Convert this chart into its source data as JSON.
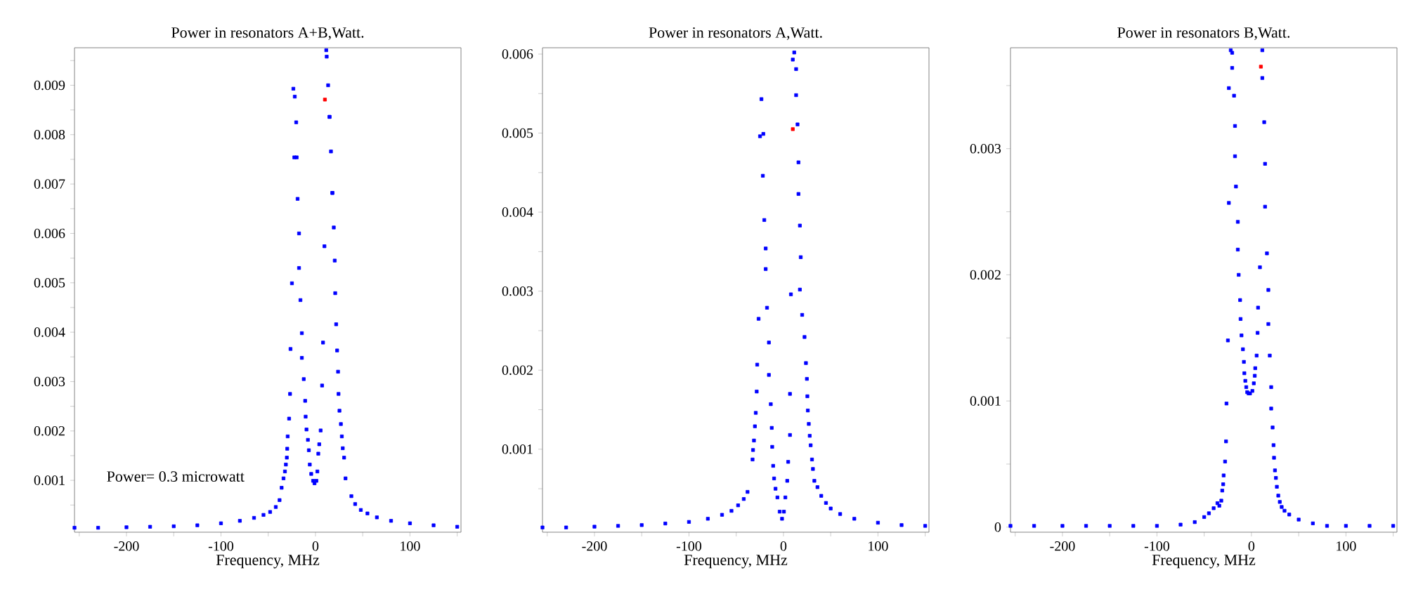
{
  "chart_data": [
    {
      "type": "scatter",
      "title": "Power in resonators A+B,Watt.",
      "xlabel": "Frequency, MHz",
      "marker": "square",
      "xlim": [
        -255,
        154
      ],
      "ylim": [
        -5e-05,
        0.00976
      ],
      "xticks": [
        {
          "value": -250,
          "label": null
        },
        -200,
        {
          "value": -150,
          "label": null
        },
        -100,
        {
          "value": -50,
          "label": null
        },
        0,
        {
          "value": 50,
          "label": null
        },
        100,
        {
          "value": 150,
          "label": null
        }
      ],
      "yticks": [
        {
          "value": 0.0005,
          "label": null
        },
        0.001,
        {
          "value": 0.0015,
          "label": null
        },
        0.002,
        {
          "value": 0.0025,
          "label": null
        },
        0.003,
        {
          "value": 0.0035,
          "label": null
        },
        0.004,
        {
          "value": 0.0045,
          "label": null
        },
        0.005,
        {
          "value": 0.0055,
          "label": null
        },
        0.006,
        {
          "value": 0.0065,
          "label": null
        },
        0.007,
        {
          "value": 0.0075,
          "label": null
        },
        0.008,
        {
          "value": 0.0085,
          "label": null
        },
        0.009,
        {
          "value": 0.0095,
          "label": null
        }
      ],
      "annotations": [
        "Power= 0.3 microwatt"
      ],
      "series": [
        {
          "color": "#0000ff",
          "x": [
            -255,
            -230,
            -200,
            -175,
            -150,
            -125,
            -100,
            -80,
            -65,
            -55,
            -48,
            -42,
            -38,
            -35.8,
            -33.8,
            -32.3,
            -31.3,
            -30.3,
            -29.9,
            -29.4,
            -27.9,
            -26.9,
            -26.4,
            -24.9,
            -23.4,
            -22.4,
            -21.9,
            -20.4,
            -19.9,
            -18.9,
            -17.4,
            -17.4,
            -15.9,
            -14.4,
            -14.4,
            -12.4,
            -10.9,
            -10.4,
            -9.5,
            -8.0,
            -7.0,
            -6.0,
            -4.5,
            -2.5,
            -1.0,
            1.0,
            2.0,
            3.0,
            4.0,
            5.5,
            7.0,
            8.0,
            9.5,
            11.4,
            11.9,
            13.4,
            14.9,
            14.9,
            16.4,
            17.9,
            17.9,
            19.4,
            20.4,
            20.9,
            21.9,
            22.9,
            23.9,
            24.4,
            25.4,
            26.9,
            27.9,
            28.9,
            30.3,
            31.8,
            38,
            42,
            48,
            55,
            65,
            80,
            100,
            125,
            150
          ],
          "values": [
            4e-05,
            4e-05,
            5e-05,
            6e-05,
            7e-05,
            9e-05,
            0.00013,
            0.00018,
            0.00024,
            0.0003,
            0.00036,
            0.00046,
            0.0006,
            0.00085,
            0.00104,
            0.00118,
            0.00132,
            0.00146,
            0.00164,
            0.00189,
            0.00225,
            0.00275,
            0.00366,
            0.00499,
            0.00893,
            0.00754,
            0.00877,
            0.00825,
            0.00754,
            0.0067,
            0.006,
            0.0053,
            0.00465,
            0.00398,
            0.00348,
            0.00305,
            0.00261,
            0.00229,
            0.00203,
            0.00182,
            0.00161,
            0.00132,
            0.00113,
            0.00099,
            0.00094,
            0.00099,
            0.00118,
            0.00154,
            0.00173,
            0.00201,
            0.00292,
            0.00379,
            0.00574,
            0.00971,
            0.00958,
            0.009,
            0.00836,
            0.00836,
            0.00766,
            0.00682,
            0.00682,
            0.00612,
            0.00545,
            0.00479,
            0.00416,
            0.00363,
            0.0032,
            0.00275,
            0.00241,
            0.00214,
            0.00189,
            0.00165,
            0.00146,
            0.00104,
            0.00068,
            0.00052,
            0.0004,
            0.00033,
            0.00025,
            0.00018,
            0.00013,
            9e-05,
            6e-05
          ]
        },
        {
          "color": "#ff0000",
          "x": [
            10.0
          ],
          "values": [
            0.00871
          ]
        }
      ]
    },
    {
      "type": "scatter",
      "title": "Power in resonators A,Watt.",
      "xlabel": "Frequency, MHz",
      "marker": "square",
      "xlim": [
        -255,
        154
      ],
      "ylim": [
        -5e-05,
        0.00608
      ],
      "xticks": [
        {
          "value": -250,
          "label": null
        },
        -200,
        {
          "value": -150,
          "label": null
        },
        -100,
        {
          "value": -50,
          "label": null
        },
        0,
        {
          "value": 50,
          "label": null
        },
        100,
        {
          "value": 150,
          "label": null
        }
      ],
      "yticks": [
        {
          "value": 0.0005,
          "label": null
        },
        0.001,
        {
          "value": 0.0015,
          "label": null
        },
        0.002,
        {
          "value": 0.0025,
          "label": null
        },
        0.003,
        {
          "value": 0.0035,
          "label": null
        },
        0.004,
        {
          "value": 0.0045,
          "label": null
        },
        0.005,
        {
          "value": 0.0055,
          "label": null
        },
        0.006
      ],
      "series": [
        {
          "color": "#0000ff",
          "x": [
            -255,
            -230,
            -200,
            -175,
            -150,
            -125,
            -100,
            -80,
            -65,
            -55,
            -48,
            -42,
            -38,
            -32.7,
            -32.2,
            -31.2,
            -30.2,
            -29.3,
            -28.3,
            -27.8,
            -26.3,
            -24.8,
            -23.3,
            -21.8,
            -21.3,
            -20.3,
            -18.8,
            -18.8,
            -17.4,
            -15.4,
            -15.4,
            -13.4,
            -12.4,
            -11.9,
            -10.9,
            -9.9,
            -8.4,
            -6.4,
            -4.0,
            -1.5,
            0.5,
            2.0,
            4.0,
            5.0,
            6.9,
            6.9,
            7.9,
            9.9,
            11.4,
            13.4,
            13.4,
            14.9,
            15.9,
            15.9,
            17.4,
            18.3,
            17.4,
            19.8,
            22.3,
            23.8,
            24.8,
            25.3,
            25.8,
            26.8,
            27.8,
            28.8,
            30.2,
            31.2,
            32.7,
            36,
            40,
            45,
            50,
            60,
            75,
            100,
            125,
            150
          ],
          "values": [
            1e-05,
            1e-05,
            2e-05,
            3e-05,
            4e-05,
            6e-05,
            8e-05,
            0.00012,
            0.00017,
            0.00022,
            0.00029,
            0.00037,
            0.00046,
            0.00087,
            0.00099,
            0.00111,
            0.00129,
            0.00146,
            0.00173,
            0.00207,
            0.00265,
            0.00496,
            0.00543,
            0.00446,
            0.00499,
            0.0039,
            0.00354,
            0.00328,
            0.00279,
            0.00235,
            0.00194,
            0.00157,
            0.00127,
            0.00103,
            0.00079,
            0.00063,
            0.0005,
            0.00039,
            0.00021,
            0.00012,
            0.00021,
            0.00039,
            0.0006,
            0.00084,
            0.00118,
            0.0017,
            0.00296,
            0.00593,
            0.00602,
            0.00581,
            0.00548,
            0.00511,
            0.00463,
            0.00423,
            0.00383,
            0.00343,
            0.00302,
            0.0027,
            0.00242,
            0.00209,
            0.00189,
            0.00167,
            0.00149,
            0.00132,
            0.00117,
            0.00105,
            0.00087,
            0.00075,
            0.0006,
            0.00052,
            0.00041,
            0.00032,
            0.00025,
            0.00018,
            0.00012,
            7e-05,
            4e-05,
            3e-05
          ]
        },
        {
          "color": "#ff0000",
          "x": [
            9.9
          ],
          "values": [
            0.00505
          ]
        }
      ]
    },
    {
      "type": "scatter",
      "title": "Power in resonators B,Watt.",
      "xlabel": "Frequency, MHz",
      "marker": "square",
      "xlim": [
        -255,
        154
      ],
      "ylim": [
        -4e-05,
        0.0038
      ],
      "xticks": [
        {
          "value": -250,
          "label": null
        },
        -200,
        {
          "value": -150,
          "label": null
        },
        -100,
        {
          "value": -50,
          "label": null
        },
        0,
        {
          "value": 50,
          "label": null
        },
        100,
        {
          "value": 150,
          "label": null
        }
      ],
      "yticks": [
        0,
        {
          "value": 0.0005,
          "label": null
        },
        0.001,
        {
          "value": 0.0015,
          "label": null
        },
        0.002,
        {
          "value": 0.0025,
          "label": null
        },
        0.003,
        {
          "value": 0.0035,
          "label": null
        }
      ],
      "series": [
        {
          "color": "#0000ff",
          "x": [
            -255,
            -230,
            -200,
            -175,
            -150,
            -125,
            -100,
            -75,
            -60,
            -50,
            -45,
            -40,
            -36,
            -34,
            -31.9,
            -30.9,
            -29.9,
            -29.4,
            -27.9,
            -26.9,
            -26.4,
            -24.9,
            -23.9,
            -23.9,
            -21.9,
            -20.4,
            -20.4,
            -18.4,
            -17.4,
            -17.4,
            -16.4,
            -14.4,
            -14.4,
            -13.5,
            -12.0,
            -11.5,
            -10.5,
            -9.0,
            -8.0,
            -7.5,
            -6.5,
            -5.5,
            -4.5,
            -3.0,
            -1.5,
            1.0,
            2.5,
            3.5,
            4.0,
            5.5,
            6.5,
            7.0,
            9.0,
            11.5,
            11.5,
            13.5,
            14.4,
            14.4,
            16.4,
            17.9,
            17.9,
            19.4,
            20.9,
            20.9,
            22.4,
            23.4,
            23.9,
            24.9,
            25.9,
            26.9,
            28.4,
            30,
            32,
            35,
            40,
            50,
            65,
            80,
            100,
            125,
            150
          ],
          "values": [
            1e-05,
            1e-05,
            1e-05,
            1e-05,
            1e-05,
            1e-05,
            1e-05,
            2e-05,
            4e-05,
            8e-05,
            0.00011,
            0.00015,
            0.00019,
            0.00017,
            0.00021,
            0.00029,
            0.00034,
            0.00041,
            0.00052,
            0.00068,
            0.00098,
            0.00148,
            0.00348,
            0.00257,
            0.00378,
            0.00376,
            0.00364,
            0.00342,
            0.00318,
            0.00294,
            0.0027,
            0.00242,
            0.0022,
            0.002,
            0.0018,
            0.00165,
            0.00152,
            0.00141,
            0.00131,
            0.00122,
            0.00116,
            0.00111,
            0.00107,
            0.00106,
            0.00106,
            0.00108,
            0.00114,
            0.0012,
            0.00126,
            0.00136,
            0.00154,
            0.00174,
            0.00206,
            0.00378,
            0.00356,
            0.00321,
            0.00288,
            0.00254,
            0.00217,
            0.00188,
            0.00161,
            0.00136,
            0.00111,
            0.00094,
            0.00079,
            0.00065,
            0.00055,
            0.00045,
            0.00039,
            0.00032,
            0.00025,
            0.0002,
            0.00016,
            0.00013,
            0.0001,
            6e-05,
            3e-05,
            1e-05,
            1e-05,
            1e-05,
            1e-05
          ]
        },
        {
          "color": "#ff0000",
          "x": [
            10.0
          ],
          "values": [
            0.00365
          ]
        }
      ]
    }
  ]
}
